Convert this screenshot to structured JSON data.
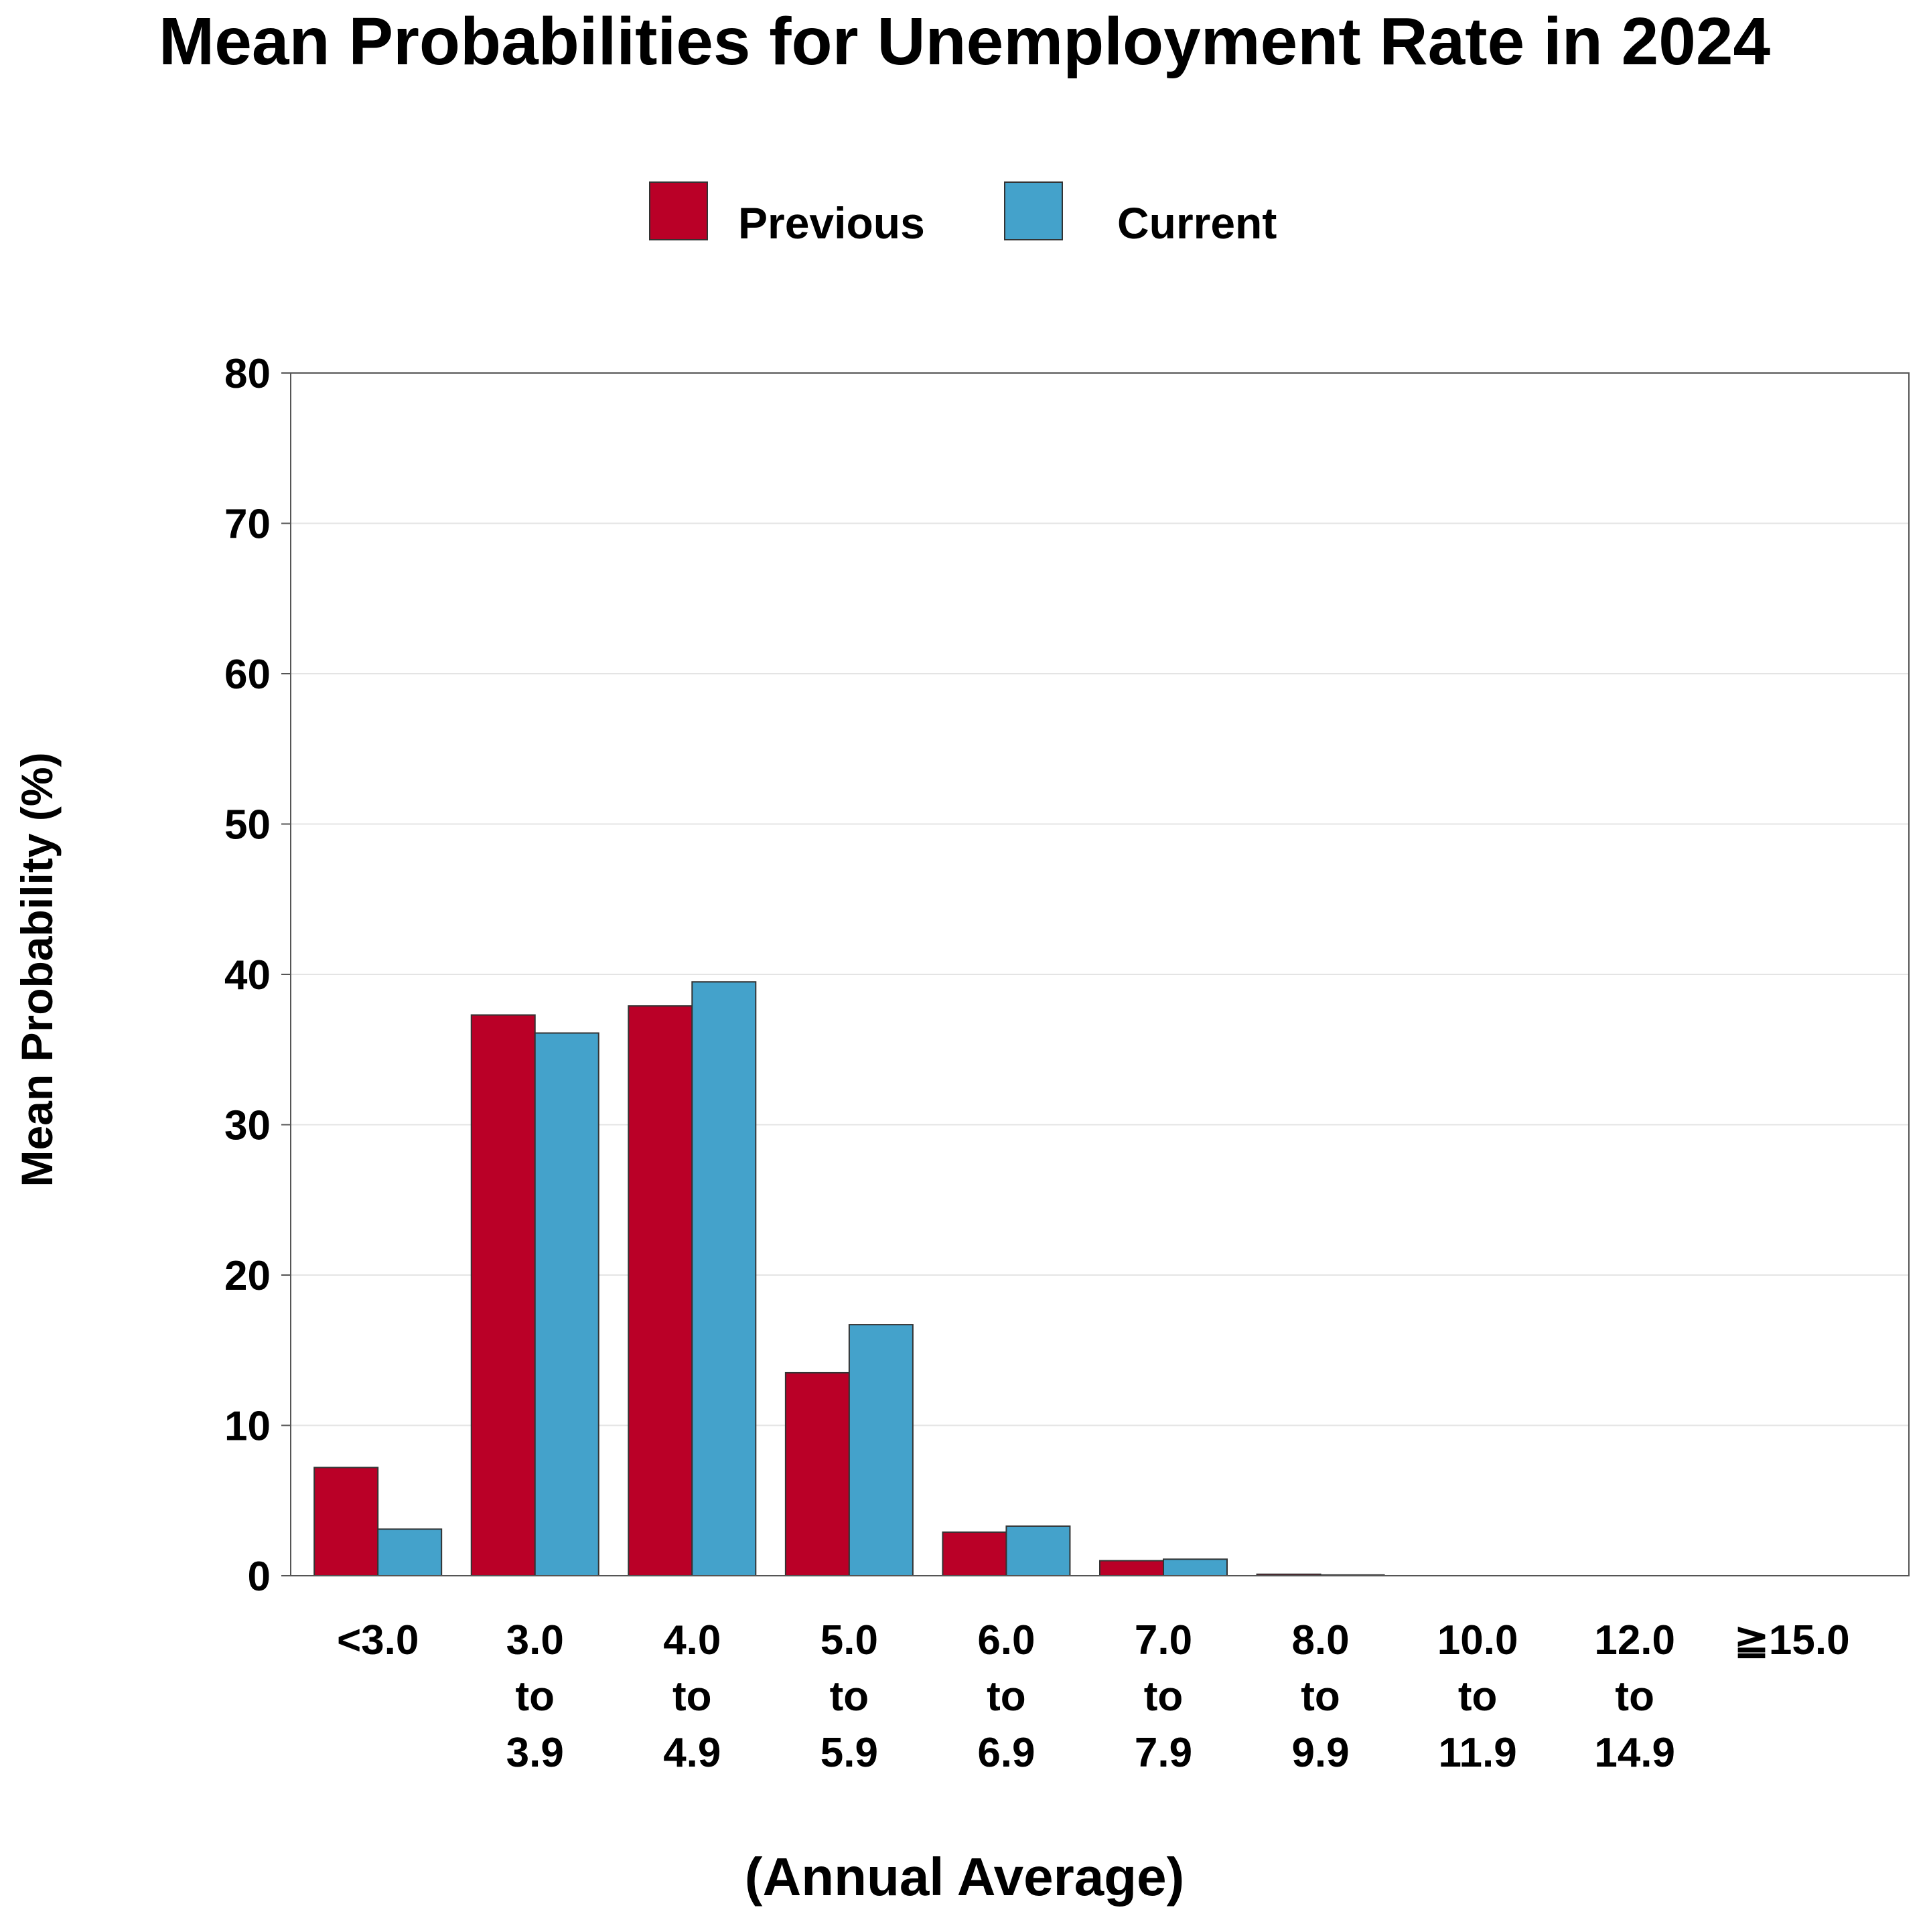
{
  "chart_data": {
    "type": "bar",
    "title": "Mean Probabilities for Unemployment Rate in 2024",
    "xlabel": "(Annual Average)",
    "ylabel": "Mean Probability (%)",
    "ylim": [
      0,
      80
    ],
    "yticks": [
      0,
      10,
      20,
      30,
      40,
      50,
      60,
      70,
      80
    ],
    "grid": true,
    "legend_position": "top-center",
    "categories": [
      [
        "<3.0"
      ],
      [
        "3.0",
        "to",
        "3.9"
      ],
      [
        "4.0",
        "to",
        "4.9"
      ],
      [
        "5.0",
        "to",
        "5.9"
      ],
      [
        "6.0",
        "to",
        "6.9"
      ],
      [
        "7.0",
        "to",
        "7.9"
      ],
      [
        "8.0",
        "to",
        "9.9"
      ],
      [
        "10.0",
        "to",
        "11.9"
      ],
      [
        "12.0",
        "to",
        "14.9"
      ],
      [
        "≧15.0"
      ]
    ],
    "series": [
      {
        "name": "Previous",
        "color": "#BA0027",
        "values": [
          7.2,
          37.3,
          37.9,
          13.5,
          2.9,
          1.0,
          0.1,
          0.0,
          0.0,
          0.0
        ]
      },
      {
        "name": "Current",
        "color": "#44A2CB",
        "values": [
          3.1,
          36.1,
          39.5,
          16.7,
          3.3,
          1.1,
          0.05,
          0.0,
          0.0,
          0.0
        ]
      }
    ]
  }
}
